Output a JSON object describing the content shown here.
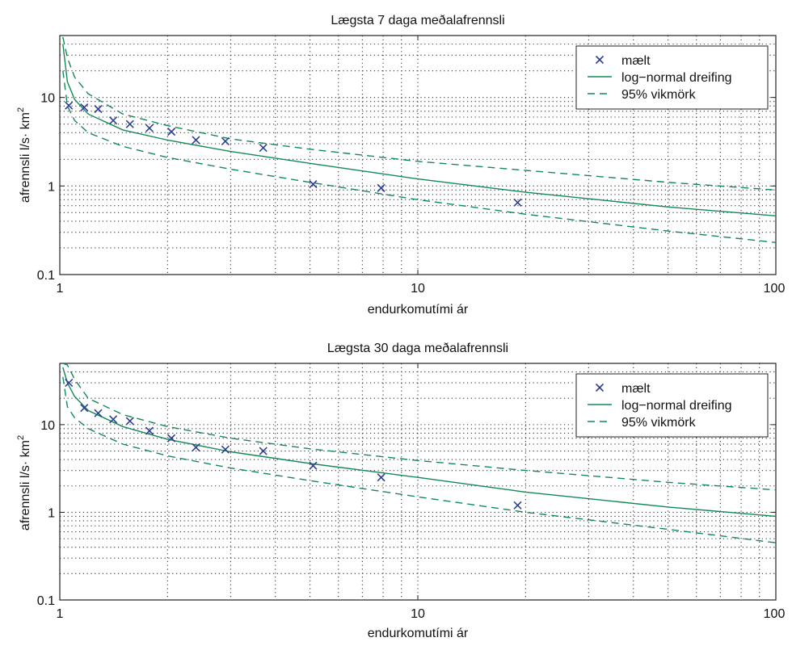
{
  "colors": {
    "marker": "#2f3f93",
    "fit": "#138a55",
    "grid": "#333333",
    "axes": "#222222"
  },
  "chart_data": [
    {
      "type": "scatter",
      "title": "Lægsta 7 daga meðalafrennsli",
      "xlabel": "endurkomutími ár",
      "ylabel": "afrennsli l/s· km",
      "ylabel_sup": "2",
      "xscale": "log",
      "yscale": "log",
      "xlim": [
        1,
        100
      ],
      "ylim": [
        0.1,
        50
      ],
      "xticks": [
        {
          "v": 1,
          "label": "1"
        },
        {
          "v": 10,
          "label": "10"
        },
        {
          "v": 100,
          "label": "100"
        }
      ],
      "yticks": [
        {
          "v": 0.1,
          "label": "0.1"
        },
        {
          "v": 1,
          "label": "1"
        },
        {
          "v": 10,
          "label": "10"
        }
      ],
      "grid": "dotted",
      "legend_position": "top-right",
      "legend": [
        {
          "key": "measured",
          "label": "mælt",
          "style": "x-marker"
        },
        {
          "key": "fit",
          "label": "log−normal dreifing",
          "style": "solid"
        },
        {
          "key": "ci",
          "label": "95% vikmörk",
          "style": "dashed"
        }
      ],
      "series": [
        {
          "name": "mælt",
          "kind": "points",
          "x": [
            1.06,
            1.17,
            1.28,
            1.41,
            1.57,
            1.78,
            2.05,
            2.4,
            2.9,
            3.7,
            5.1,
            7.9,
            19
          ],
          "y": [
            8.1,
            7.7,
            7.4,
            5.5,
            5.0,
            4.5,
            4.1,
            3.3,
            3.2,
            2.7,
            1.05,
            0.95,
            0.65
          ]
        },
        {
          "name": "log−normal dreifing",
          "kind": "line",
          "x": [
            1.02,
            1.05,
            1.1,
            1.2,
            1.5,
            2,
            3,
            5,
            10,
            20,
            50,
            100
          ],
          "y": [
            40,
            15,
            9.5,
            6.5,
            4.3,
            3.3,
            2.45,
            1.8,
            1.2,
            0.85,
            0.58,
            0.46
          ]
        },
        {
          "name": "95% vikmörk",
          "kind": "line",
          "role": "upper",
          "x": [
            1.02,
            1.05,
            1.1,
            1.2,
            1.5,
            2,
            3,
            5,
            10,
            20,
            50,
            100
          ],
          "y": [
            48,
            28,
            17,
            11,
            6.5,
            4.8,
            3.4,
            2.6,
            1.9,
            1.5,
            1.1,
            0.9
          ]
        },
        {
          "name": "95% vikmörk",
          "kind": "line",
          "role": "lower",
          "x": [
            1.02,
            1.05,
            1.1,
            1.2,
            1.5,
            2,
            3,
            5,
            10,
            20,
            50,
            100
          ],
          "y": [
            20,
            8,
            5.5,
            4.0,
            2.8,
            2.1,
            1.55,
            1.1,
            0.7,
            0.48,
            0.31,
            0.23
          ]
        }
      ]
    },
    {
      "type": "scatter",
      "title": "Lægsta 30 daga meðalafrennsli",
      "xlabel": "endurkomutími ár",
      "ylabel": "afrennsli l/s· km",
      "ylabel_sup": "2",
      "xscale": "log",
      "yscale": "log",
      "xlim": [
        1,
        100
      ],
      "ylim": [
        0.1,
        50
      ],
      "xticks": [
        {
          "v": 1,
          "label": "1"
        },
        {
          "v": 10,
          "label": "10"
        },
        {
          "v": 100,
          "label": "100"
        }
      ],
      "yticks": [
        {
          "v": 0.1,
          "label": "0.1"
        },
        {
          "v": 1,
          "label": "1"
        },
        {
          "v": 10,
          "label": "10"
        }
      ],
      "grid": "dotted",
      "legend_position": "top-right",
      "legend": [
        {
          "key": "measured",
          "label": "mælt",
          "style": "x-marker"
        },
        {
          "key": "fit",
          "label": "log−normal dreifing",
          "style": "solid"
        },
        {
          "key": "ci",
          "label": "95% vikmörk",
          "style": "dashed"
        }
      ],
      "series": [
        {
          "name": "mælt",
          "kind": "points",
          "x": [
            1.06,
            1.17,
            1.28,
            1.41,
            1.57,
            1.78,
            2.05,
            2.4,
            2.9,
            3.7,
            5.1,
            7.9,
            19
          ],
          "y": [
            30,
            15.5,
            13.5,
            11.5,
            11,
            8.5,
            7,
            5.5,
            5.2,
            5.0,
            3.4,
            2.5,
            1.2
          ]
        },
        {
          "name": "log−normal dreifing",
          "kind": "line",
          "x": [
            1.02,
            1.05,
            1.1,
            1.2,
            1.5,
            2,
            3,
            5,
            10,
            20,
            50,
            100
          ],
          "y": [
            45,
            30,
            21,
            14.5,
            9.5,
            6.8,
            4.9,
            3.6,
            2.5,
            1.7,
            1.15,
            0.9
          ]
        },
        {
          "name": "95% vikmörk",
          "kind": "line",
          "role": "upper",
          "x": [
            1.02,
            1.05,
            1.1,
            1.2,
            1.5,
            2,
            3,
            5,
            10,
            20,
            50,
            100
          ],
          "y": [
            50,
            48,
            33,
            20,
            13,
            9.5,
            7,
            5.3,
            3.9,
            3.0,
            2.2,
            1.8
          ]
        },
        {
          "name": "95% vikmörk",
          "kind": "line",
          "role": "lower",
          "x": [
            1.02,
            1.05,
            1.1,
            1.2,
            1.5,
            2,
            3,
            5,
            10,
            20,
            50,
            100
          ],
          "y": [
            35,
            16,
            12,
            9,
            6,
            4.4,
            3.2,
            2.3,
            1.5,
            1.0,
            0.64,
            0.45
          ]
        }
      ]
    }
  ]
}
